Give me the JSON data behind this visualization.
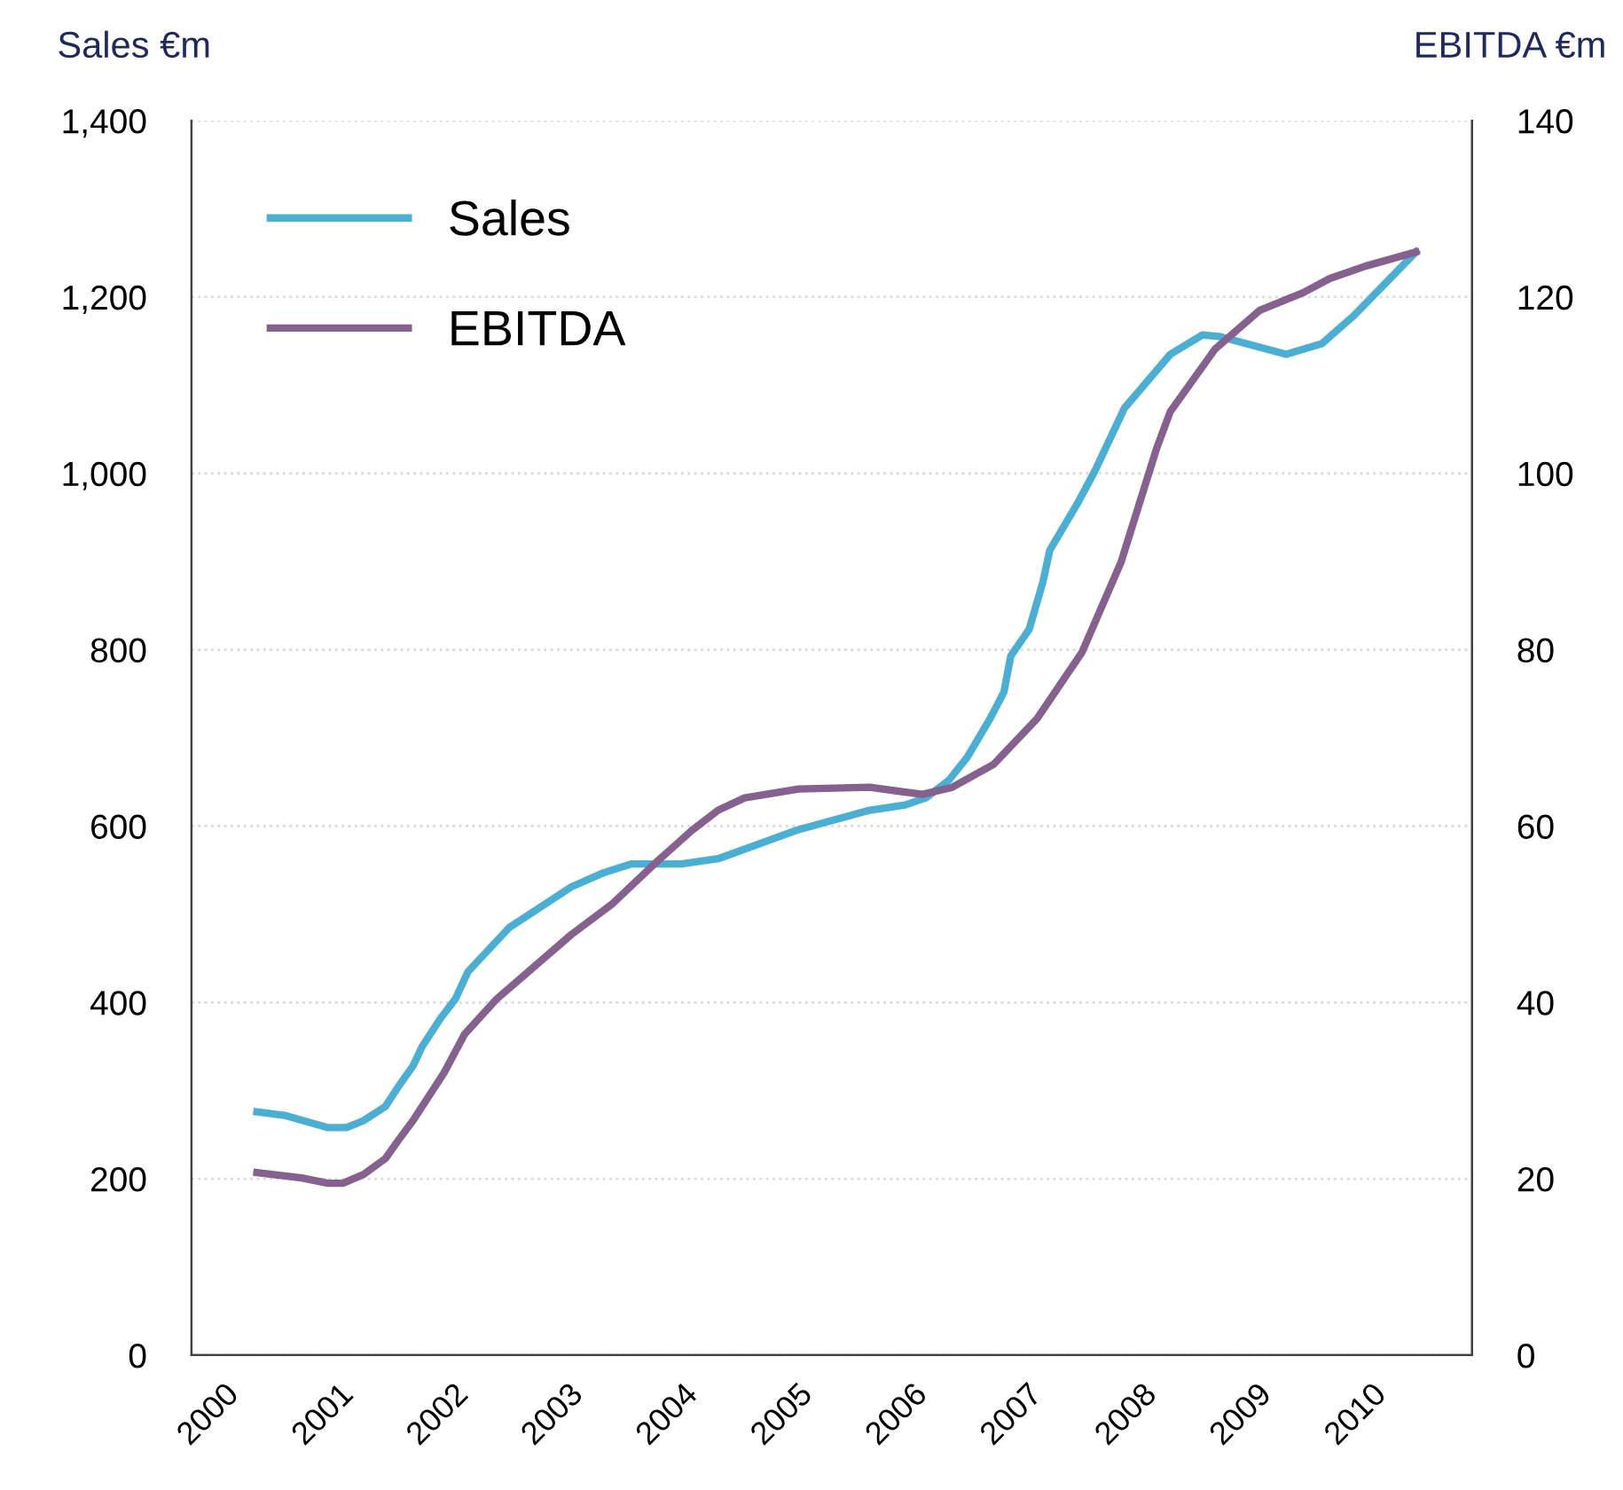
{
  "chart_data": {
    "type": "line",
    "ylabel": "Sales €m",
    "y2label": "EBITDA €m",
    "xlim": [
      1999.72,
      2010.88
    ],
    "xticks": [
      2000,
      2001,
      2002,
      2003,
      2004,
      2005,
      2006,
      2007,
      2008,
      2009,
      2010
    ],
    "ylim": [
      0,
      1400
    ],
    "yticks": [
      {
        "value": 0,
        "label": "0"
      },
      {
        "value": 200,
        "label": "200"
      },
      {
        "value": 400,
        "label": "400"
      },
      {
        "value": 600,
        "label": "600"
      },
      {
        "value": 800,
        "label": "800"
      },
      {
        "value": 1000,
        "label": "1,000"
      },
      {
        "value": 1200,
        "label": "1,200"
      },
      {
        "value": 1400,
        "label": "1,400"
      }
    ],
    "y2lim": [
      0,
      140
    ],
    "y2ticks": [
      0,
      20,
      40,
      60,
      80,
      100,
      120,
      140
    ],
    "grid": "y",
    "legend": "top left",
    "line_style": "solid",
    "marker": "none",
    "series": [
      {
        "name": "Sales",
        "color": "#4bafd3",
        "x": [
          2000.29,
          2000.53,
          2000.91,
          2001.07,
          2001.22,
          2001.41,
          2001.53,
          2001.65,
          2001.73,
          2001.89,
          2002.02,
          2002.13,
          2002.49,
          2003.03,
          2003.31,
          2003.55,
          2003.99,
          2004.31,
          2005.01,
          2005.63,
          2005.94,
          2006.12,
          2006.32,
          2006.48,
          2006.68,
          2006.8,
          2006.86,
          2007.02,
          2007.14,
          2007.2,
          2007.45,
          2007.59,
          2007.85,
          2008.25,
          2008.53,
          2008.69,
          2009.26,
          2009.57,
          2009.85,
          2010.39
        ],
        "values": [
          276,
          272,
          258,
          258,
          266,
          282,
          306,
          328,
          350,
          382,
          404,
          435,
          485,
          531,
          547,
          557,
          557,
          563,
          596,
          618,
          624,
          632,
          652,
          678,
          722,
          752,
          793,
          823,
          877,
          913,
          968,
          1002,
          1074,
          1135,
          1157,
          1155,
          1135,
          1147,
          1179,
          1251
        ]
      },
      {
        "name": "EBITDA",
        "color": "#86608e",
        "axis": "y2",
        "x": [
          2000.29,
          2000.68,
          2000.91,
          2001.04,
          2001.22,
          2001.41,
          2001.53,
          2001.65,
          2001.92,
          2002.1,
          2002.38,
          2003.03,
          2003.38,
          2003.77,
          2004.08,
          2004.31,
          2004.54,
          2005.01,
          2005.63,
          2006.09,
          2006.35,
          2006.71,
          2007.09,
          2007.48,
          2007.82,
          2008.13,
          2008.25,
          2008.64,
          2009.03,
          2009.41,
          2009.64,
          2009.95,
          2010.39
        ],
        "values": [
          20.7,
          20.1,
          19.5,
          19.5,
          20.5,
          22.3,
          24.5,
          26.6,
          32.0,
          36.4,
          40.4,
          47.7,
          51.1,
          55.9,
          59.5,
          61.8,
          63.2,
          64.2,
          64.4,
          63.6,
          64.4,
          67.0,
          72.2,
          79.7,
          89.9,
          102.8,
          107.0,
          114.1,
          118.5,
          120.5,
          122.1,
          123.5,
          125.1
        ]
      }
    ]
  }
}
